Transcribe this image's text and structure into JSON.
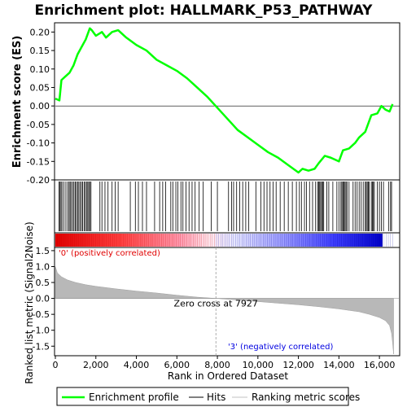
{
  "chart_data": {
    "type": "line",
    "title": "Enrichment plot: HALLMARK_P53_PATHWAY",
    "top_panel": {
      "ylabel": "Enrichment score (ES)",
      "ylim": [
        -0.2,
        0.225
      ],
      "yticks": [
        "0.20",
        "0.15",
        "0.10",
        "0.05",
        "0.00",
        "-0.05",
        "-0.10",
        "-0.15",
        "-0.20"
      ],
      "ytick_values": [
        0.2,
        0.15,
        0.1,
        0.05,
        0.0,
        -0.05,
        -0.1,
        -0.15,
        -0.2
      ],
      "series": [
        {
          "name": "Enrichment profile",
          "color": "#00ff00",
          "x": [
            0,
            200,
            300,
            500,
            700,
            900,
            1100,
            1300,
            1500,
            1700,
            1800,
            2000,
            2300,
            2500,
            2800,
            3100,
            3500,
            4000,
            4500,
            5000,
            5500,
            6000,
            6500,
            7000,
            7500,
            8000,
            8500,
            9000,
            9500,
            10000,
            10500,
            11000,
            11500,
            12000,
            12200,
            12500,
            12800,
            13000,
            13300,
            13600,
            14000,
            14200,
            14500,
            14800,
            15000,
            15300,
            15600,
            15900,
            16100,
            16300,
            16500,
            16650
          ],
          "y": [
            0.02,
            0.015,
            0.07,
            0.08,
            0.09,
            0.11,
            0.14,
            0.16,
            0.18,
            0.21,
            0.205,
            0.19,
            0.2,
            0.185,
            0.2,
            0.205,
            0.185,
            0.165,
            0.15,
            0.125,
            0.11,
            0.095,
            0.075,
            0.05,
            0.025,
            -0.005,
            -0.035,
            -0.065,
            -0.085,
            -0.105,
            -0.125,
            -0.14,
            -0.16,
            -0.18,
            -0.17,
            -0.175,
            -0.17,
            -0.155,
            -0.135,
            -0.14,
            -0.15,
            -0.12,
            -0.115,
            -0.1,
            -0.085,
            -0.07,
            -0.025,
            -0.02,
            0.0,
            -0.01,
            -0.015,
            0.005
          ]
        }
      ]
    },
    "hits": {
      "name": "Hits",
      "ranks": [
        180,
        230,
        280,
        330,
        420,
        520,
        610,
        680,
        730,
        790,
        860,
        920,
        980,
        1040,
        1100,
        1160,
        1220,
        1290,
        1350,
        1420,
        1480,
        1540,
        1600,
        1650,
        1700,
        1760,
        2200,
        2300,
        2450,
        2600,
        2800,
        2950,
        3100,
        3700,
        3950,
        4100,
        4300,
        4500,
        4900,
        5150,
        5300,
        5450,
        5700,
        5800,
        5950,
        6050,
        6200,
        6300,
        6450,
        6600,
        6750,
        6900,
        7100,
        7300,
        7700,
        8000,
        8550,
        8700,
        8800,
        8950,
        9100,
        9250,
        9400,
        9550,
        9900,
        10150,
        10300,
        10450,
        10600,
        10750,
        10900,
        11100,
        11300,
        11500,
        11700,
        11900,
        12050,
        12150,
        12300,
        12400,
        12550,
        12700,
        12850,
        12950,
        13000,
        13050,
        13100,
        13150,
        13200,
        13250,
        13400,
        13500,
        13700,
        13900,
        14000,
        14100,
        14150,
        14200,
        14250,
        14300,
        14350,
        14400,
        14500,
        14700,
        14800,
        14900,
        15000,
        15100,
        15200,
        15300,
        15350,
        15400,
        15450,
        15500,
        15600,
        15650,
        15700,
        15750,
        15900,
        16000,
        16100,
        16200,
        16450,
        16550,
        16600
      ]
    },
    "bottom_panel": {
      "ylabel": "Ranked list metric (Signal2Noise)",
      "xlabel": "Rank in Ordered Dataset",
      "ylim": [
        -1.8,
        1.6
      ],
      "yticks": [
        "1.5",
        "1.0",
        "0.5",
        "0.0",
        "-0.5",
        "-1.0",
        "-1.5"
      ],
      "ytick_values": [
        1.5,
        1.0,
        0.5,
        0.0,
        -0.5,
        -1.0,
        -1.5
      ],
      "metric_x": [
        0,
        100,
        300,
        600,
        1000,
        1500,
        2000,
        3000,
        4000,
        5000,
        6000,
        7000,
        7927,
        9000,
        10000,
        11000,
        12000,
        13000,
        14000,
        15000,
        15500,
        16000,
        16300,
        16500,
        16600,
        16650,
        16700
      ],
      "metric_y": [
        1.0,
        0.8,
        0.68,
        0.58,
        0.5,
        0.43,
        0.38,
        0.3,
        0.23,
        0.17,
        0.1,
        0.04,
        0.0,
        -0.05,
        -0.1,
        -0.15,
        -0.2,
        -0.26,
        -0.33,
        -0.42,
        -0.5,
        -0.6,
        -0.7,
        -0.85,
        -1.1,
        -1.4,
        -1.75
      ],
      "zero_cross_label": "Zero cross at 7927",
      "zero_cross": 7927,
      "pos_label": "'0' (positively correlated)",
      "neg_label": "'3' (negatively correlated)"
    },
    "xlim": [
      0,
      17000
    ],
    "xticks": [
      "0",
      "2,000",
      "4,000",
      "6,000",
      "8,000",
      "10,000",
      "12,000",
      "14,000",
      "16,000"
    ],
    "xtick_values": [
      0,
      2000,
      4000,
      6000,
      8000,
      10000,
      12000,
      14000,
      16000
    ],
    "n_genes": 16700,
    "legend": [
      {
        "label": "Enrichment profile",
        "color": "#00ff00"
      },
      {
        "label": "Hits",
        "color": "#000000"
      },
      {
        "label": "Ranking metric scores",
        "color": "#c0c0c0"
      }
    ],
    "grid": false
  }
}
